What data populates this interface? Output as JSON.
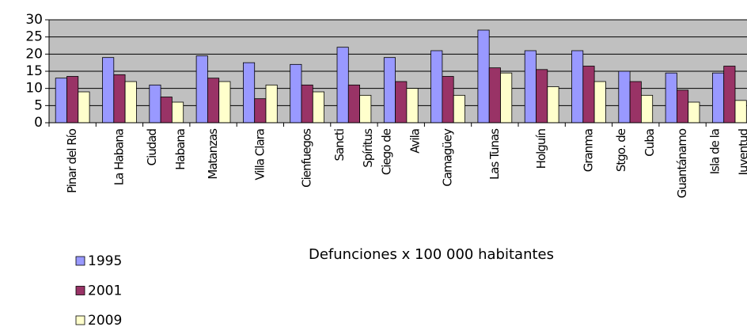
{
  "chart_data": {
    "type": "bar",
    "categories": [
      [
        "Pinar del Río"
      ],
      [
        "La Habana"
      ],
      [
        "Ciudad",
        "Habana"
      ],
      [
        "Matanzas"
      ],
      [
        "Villa Clara"
      ],
      [
        "Cienfuegos"
      ],
      [
        "Sancti",
        "Spíritus"
      ],
      [
        "Ciego de",
        "Avila"
      ],
      [
        "Camagüey"
      ],
      [
        "Las Tunas"
      ],
      [
        "Holguín"
      ],
      [
        "Granma"
      ],
      [
        "Stgo. de",
        "Cuba"
      ],
      [
        "Guantánamo"
      ],
      [
        "Isla de la",
        "Juventud"
      ]
    ],
    "series": [
      {
        "name": "1995",
        "color": "#9999ff",
        "values": [
          13,
          19,
          11,
          19.5,
          17.5,
          17,
          22,
          19,
          21,
          27,
          21,
          21,
          15,
          14.5,
          14.5
        ]
      },
      {
        "name": "2001",
        "color": "#993366",
        "values": [
          13.5,
          14,
          7.5,
          13,
          7,
          11,
          11,
          12,
          13.5,
          16,
          15.5,
          16.5,
          12,
          9.5,
          16.5
        ]
      },
      {
        "name": "2009",
        "color": "#ffffcc",
        "values": [
          9,
          12,
          6,
          12,
          11,
          9,
          8,
          10,
          8,
          14.5,
          10.5,
          12,
          8,
          6,
          6.5
        ]
      }
    ],
    "x_label": "Defunciones  x 100 000 habitantes",
    "ylim": [
      0,
      30
    ],
    "yticks": [
      0,
      5,
      10,
      15,
      20,
      25,
      30
    ],
    "grid": true,
    "legend": "bottom-left",
    "plot_background": "#c0c0c0"
  }
}
